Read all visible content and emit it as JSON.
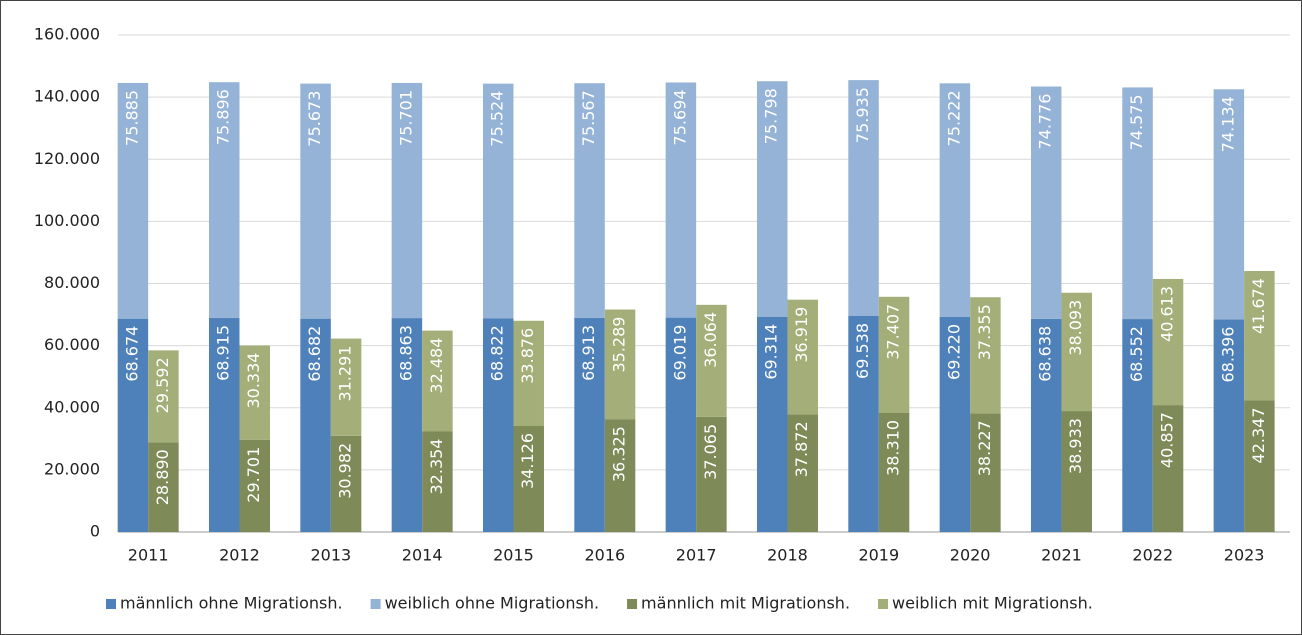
{
  "chart_data": {
    "type": "bar",
    "categories": [
      "2011",
      "2012",
      "2013",
      "2014",
      "2015",
      "2016",
      "2017",
      "2018",
      "2019",
      "2020",
      "2021",
      "2022",
      "2023"
    ],
    "series": [
      {
        "name": "männlich ohne Migrationsh.",
        "color": "#4e80ba",
        "values": [
          68674,
          68915,
          68682,
          68863,
          68822,
          68913,
          69019,
          69314,
          69538,
          69220,
          68638,
          68552,
          68396
        ],
        "value_labels": [
          "68.674",
          "68.915",
          "68.682",
          "68.863",
          "68.822",
          "68.913",
          "69.019",
          "69.314",
          "69.538",
          "69.220",
          "68.638",
          "68.552",
          "68.396"
        ]
      },
      {
        "name": "weiblich ohne Migrationsh.",
        "color": "#95b3d7",
        "values": [
          75885,
          75896,
          75673,
          75701,
          75524,
          75567,
          75694,
          75798,
          75935,
          75222,
          74776,
          74575,
          74134
        ],
        "value_labels": [
          "75.885",
          "75.896",
          "75.673",
          "75.701",
          "75.524",
          "75.567",
          "75.694",
          "75.798",
          "75.935",
          "75.222",
          "74.776",
          "74.575",
          "74.134"
        ]
      },
      {
        "name": "männlich mit Migrationsh.",
        "color": "#7e8a58",
        "values": [
          28890,
          29701,
          30982,
          32354,
          34126,
          36325,
          37065,
          37872,
          38310,
          38227,
          38933,
          40857,
          42347
        ],
        "value_labels": [
          "28.890",
          "29.701",
          "30.982",
          "32.354",
          "34.126",
          "36.325",
          "37.065",
          "37.872",
          "38.310",
          "38.227",
          "38.933",
          "40.857",
          "42.347"
        ]
      },
      {
        "name": "weiblich mit Migrationsh.",
        "color": "#a4ae79",
        "values": [
          29592,
          30334,
          31291,
          32484,
          33876,
          35289,
          36064,
          36919,
          37407,
          37355,
          38093,
          40613,
          41674
        ],
        "value_labels": [
          "29.592",
          "30.334",
          "31.291",
          "32.484",
          "33.876",
          "35.289",
          "36.064",
          "36.919",
          "37.407",
          "37.355",
          "38.093",
          "40.613",
          "41.674"
        ]
      }
    ],
    "ylim": [
      0,
      160000
    ],
    "yticks": [
      0,
      {
        "value": 20000,
        "label": "20.000"
      },
      {
        "value": 40000,
        "label": "40.000"
      },
      {
        "value": 60000,
        "label": "60.000"
      },
      {
        "value": 80000,
        "label": "80.000"
      },
      {
        "value": 100000,
        "label": "100.000"
      },
      {
        "value": 120000,
        "label": "120.000"
      },
      {
        "value": 140000,
        "label": "140.000"
      },
      {
        "value": 160000,
        "label": "160.000"
      }
    ],
    "grid": true,
    "legend": "bottom"
  }
}
